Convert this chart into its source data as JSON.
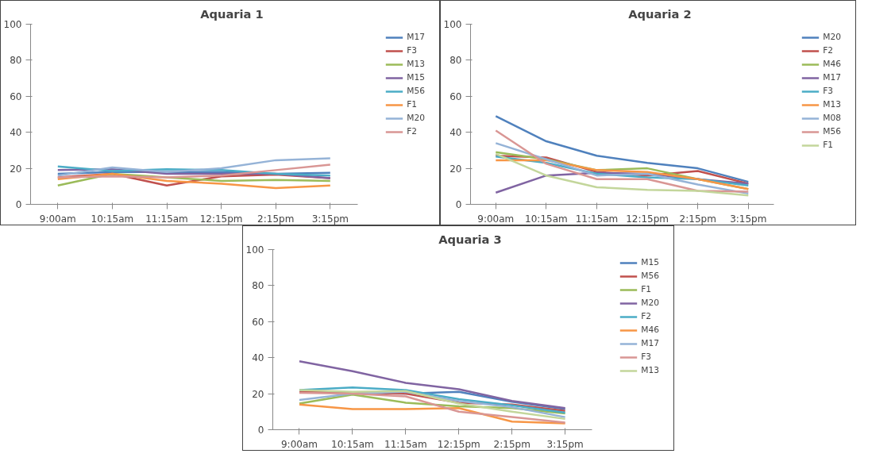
{
  "chart_data": [
    {
      "type": "line",
      "title": "Aquaria 1",
      "categories": [
        "9:00am",
        "10:15am",
        "11:15am",
        "12:15pm",
        "2:15pm",
        "3:15pm"
      ],
      "ylim": [
        0,
        100
      ],
      "yticks": [
        0,
        20,
        40,
        60,
        80,
        100
      ],
      "grid": false,
      "legend": "right",
      "marker": "none",
      "line_style": "solid",
      "series": [
        {
          "name": "M17",
          "color": "#4f81bd",
          "values": [
            17,
            18,
            18,
            18,
            17,
            17.5
          ]
        },
        {
          "name": "F3",
          "color": "#c0504d",
          "values": [
            15,
            17,
            10.5,
            15.5,
            16.5,
            14.5
          ]
        },
        {
          "name": "M13",
          "color": "#9bbb59",
          "values": [
            10.5,
            17,
            15,
            13,
            13.5,
            13
          ]
        },
        {
          "name": "M15",
          "color": "#8064a2",
          "values": [
            19,
            19.5,
            17,
            17,
            17,
            14.5
          ]
        },
        {
          "name": "M56",
          "color": "#4bacc6",
          "values": [
            21,
            18.5,
            19.5,
            19,
            17,
            16
          ]
        },
        {
          "name": "F1",
          "color": "#f79646",
          "values": [
            14,
            17,
            13,
            11.5,
            9,
            10.5
          ]
        },
        {
          "name": "M20",
          "color": "#95b3d7",
          "values": [
            16,
            20.5,
            18,
            20,
            24.5,
            25.5
          ]
        },
        {
          "name": "F2",
          "color": "#d99694",
          "values": [
            15,
            15.5,
            15,
            16,
            19,
            22
          ]
        }
      ]
    },
    {
      "type": "line",
      "title": "Aquaria 2",
      "categories": [
        "9:00am",
        "10:15am",
        "11:15am",
        "12:15pm",
        "2:15pm",
        "3:15pm"
      ],
      "ylim": [
        0,
        100
      ],
      "yticks": [
        0,
        20,
        40,
        60,
        80,
        100
      ],
      "grid": false,
      "legend": "right",
      "marker": "none",
      "line_style": "solid",
      "series": [
        {
          "name": "M20",
          "color": "#4f81bd",
          "values": [
            49,
            35,
            27,
            23,
            20,
            12.5
          ]
        },
        {
          "name": "F2",
          "color": "#c0504d",
          "values": [
            27,
            26,
            18,
            16,
            18.5,
            11.5
          ]
        },
        {
          "name": "M46",
          "color": "#9bbb59",
          "values": [
            29,
            25,
            19,
            20,
            14,
            8.5
          ]
        },
        {
          "name": "M17",
          "color": "#8064a2",
          "values": [
            6.5,
            16,
            17.5,
            17,
            14,
            11.5
          ]
        },
        {
          "name": "F3",
          "color": "#4bacc6",
          "values": [
            26.5,
            23,
            17,
            15,
            14,
            10.5
          ]
        },
        {
          "name": "M13",
          "color": "#f79646",
          "values": [
            24.5,
            24.5,
            19,
            18,
            14,
            8.5
          ]
        },
        {
          "name": "M08",
          "color": "#95b3d7",
          "values": [
            34,
            25,
            16,
            17,
            11,
            6
          ]
        },
        {
          "name": "M56",
          "color": "#d99694",
          "values": [
            41,
            22.5,
            14,
            14,
            7.5,
            7
          ]
        },
        {
          "name": "F1",
          "color": "#c3d69b",
          "values": [
            28,
            16,
            9.5,
            8,
            7.5,
            5
          ]
        }
      ]
    },
    {
      "type": "line",
      "title": "Aquaria 3",
      "categories": [
        "9:00am",
        "10:15am",
        "11:15am",
        "12:15pm",
        "2:15pm",
        "3:15pm"
      ],
      "ylim": [
        0,
        100
      ],
      "yticks": [
        0,
        20,
        40,
        60,
        80,
        100
      ],
      "grid": false,
      "legend": "right",
      "marker": "none",
      "line_style": "solid",
      "series": [
        {
          "name": "M15",
          "color": "#4f81bd",
          "values": [
            21,
            20.5,
            20,
            21,
            15.5,
            11.5
          ]
        },
        {
          "name": "M56",
          "color": "#c0504d",
          "values": [
            21,
            20.5,
            20,
            15,
            14,
            10.5
          ]
        },
        {
          "name": "F1",
          "color": "#9bbb59",
          "values": [
            14.5,
            19.5,
            15,
            13,
            12,
            9
          ]
        },
        {
          "name": "M20",
          "color": "#8064a2",
          "values": [
            38,
            32.5,
            26,
            22.5,
            16,
            12
          ]
        },
        {
          "name": "F2",
          "color": "#4bacc6",
          "values": [
            22,
            23.5,
            22,
            17,
            13.5,
            9.5
          ]
        },
        {
          "name": "M46",
          "color": "#f79646",
          "values": [
            14,
            11.5,
            11.5,
            12,
            4.5,
            3.5
          ]
        },
        {
          "name": "M17",
          "color": "#95b3d7",
          "values": [
            16.5,
            20,
            21,
            16,
            12.5,
            7
          ]
        },
        {
          "name": "F3",
          "color": "#d99694",
          "values": [
            20.5,
            20,
            18.5,
            10,
            7,
            4
          ]
        },
        {
          "name": "M13",
          "color": "#c3d69b",
          "values": [
            22,
            21,
            21.5,
            14.5,
            10,
            6
          ]
        }
      ]
    }
  ]
}
